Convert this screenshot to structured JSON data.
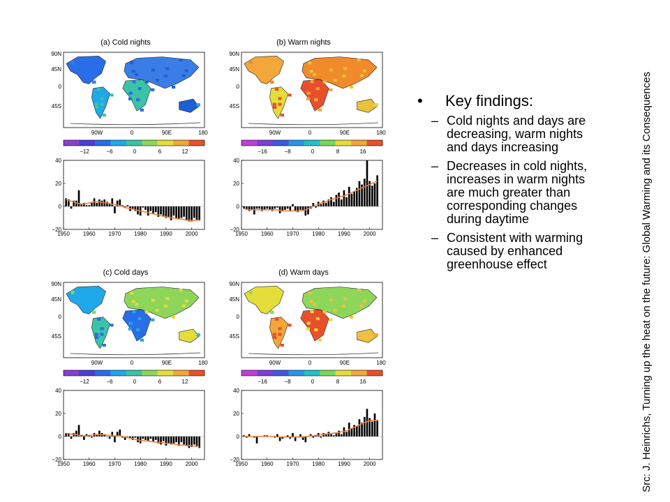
{
  "findings": {
    "heading": "Key findings:",
    "items": [
      "Cold nights and days are decreasing, warm nights and days increasing",
      "Decreases in cold nights, increases in warm nights are much greater than corresponding changes during daytime",
      "Consistent with warming caused by enhanced greenhouse effect"
    ]
  },
  "source": "Src: J. Heinrichs, Turning up the heat on the future: Global Warming and its Consequences",
  "colors": {
    "bars": "#000000",
    "trend": "#f07f3c",
    "grid": "#9a9a9a"
  },
  "chart_data": [
    {
      "type": "bar",
      "title": "(a) Cold nights",
      "map": {
        "lat_labels": [
          "90N",
          "45N",
          "0",
          "45S"
        ],
        "lon_labels": [
          "90W",
          "0",
          "90E",
          "180"
        ],
        "dominant": "cold-blue"
      },
      "colorbar": {
        "ticks": [
          "-12",
          "-6",
          "0",
          "6",
          "12"
        ],
        "colors": [
          "#8a3fd0",
          "#4a3ed6",
          "#2a6de8",
          "#1fa8ea",
          "#3bc3a6",
          "#8ed65a",
          "#e4dd3a",
          "#f3a63a",
          "#ea4f2c"
        ]
      },
      "x_ticks": [
        "1950",
        "1960",
        "1970",
        "1980",
        "1990",
        "2000"
      ],
      "y_ticks": [
        "40",
        "20",
        "0",
        "-20"
      ],
      "ylim": [
        -20,
        40
      ],
      "xlim": [
        1950,
        2005
      ],
      "x": [
        1951,
        1952,
        1953,
        1954,
        1955,
        1956,
        1957,
        1958,
        1959,
        1960,
        1961,
        1962,
        1963,
        1964,
        1965,
        1966,
        1967,
        1968,
        1969,
        1970,
        1971,
        1972,
        1973,
        1974,
        1975,
        1976,
        1977,
        1978,
        1979,
        1980,
        1981,
        1982,
        1983,
        1984,
        1985,
        1986,
        1987,
        1988,
        1989,
        1990,
        1991,
        1992,
        1993,
        1994,
        1995,
        1996,
        1997,
        1998,
        1999,
        2000,
        2001,
        2002,
        2003
      ],
      "values": [
        7,
        6,
        -2,
        5,
        5,
        14,
        2,
        3,
        1,
        1,
        3,
        7,
        3,
        6,
        5,
        6,
        4,
        2,
        7,
        -6,
        5,
        6,
        1,
        -1,
        1,
        -4,
        -2,
        -4,
        -7,
        -8,
        -1,
        -3,
        -8,
        -4,
        -6,
        -5,
        -9,
        -7,
        -9,
        -10,
        -9,
        -12,
        -8,
        -11,
        -11,
        -10,
        -9,
        -12,
        -13,
        -13,
        -10,
        -12,
        -12
      ],
      "trend": [
        6,
        5,
        4.5,
        4,
        3,
        2.5,
        2,
        2,
        2.5,
        3,
        3.5,
        4,
        4,
        4,
        3.5,
        3,
        3,
        2.5,
        2,
        1.5,
        1,
        0.5,
        0,
        -1,
        -1.5,
        -2,
        -2.5,
        -3,
        -3.5,
        -4,
        -4.5,
        -5,
        -5.5,
        -6,
        -6.5,
        -7,
        -7.5,
        -8,
        -8.5,
        -9,
        -9.5,
        -10,
        -10,
        -10.5,
        -11,
        -11,
        -11.5,
        -12,
        -12,
        -12,
        -12,
        -12,
        -12
      ]
    },
    {
      "type": "bar",
      "title": "(b) Warm nights",
      "map": {
        "lat_labels": [
          "90N",
          "45N",
          "0",
          "45S"
        ],
        "lon_labels": [
          "90W",
          "0",
          "90E",
          "180"
        ],
        "dominant": "warm-orange"
      },
      "colorbar": {
        "ticks": [
          "-16",
          "-8",
          "0",
          "8",
          "16"
        ],
        "colors": [
          "#c23ed8",
          "#7b3fd6",
          "#3c59e0",
          "#2596e8",
          "#24c0c4",
          "#7cd65a",
          "#e4dd3a",
          "#f3a63a",
          "#ea4f2c"
        ]
      },
      "x_ticks": [
        "1950",
        "1960",
        "1970",
        "1980",
        "1990",
        "2000"
      ],
      "y_ticks": [
        "40",
        "20",
        "0",
        "-20"
      ],
      "ylim": [
        -20,
        40
      ],
      "xlim": [
        1950,
        2005
      ],
      "x": [
        1951,
        1952,
        1953,
        1954,
        1955,
        1956,
        1957,
        1958,
        1959,
        1960,
        1961,
        1962,
        1963,
        1964,
        1965,
        1966,
        1967,
        1968,
        1969,
        1970,
        1971,
        1972,
        1973,
        1974,
        1975,
        1976,
        1977,
        1978,
        1979,
        1980,
        1981,
        1982,
        1983,
        1984,
        1985,
        1986,
        1987,
        1988,
        1989,
        1990,
        1991,
        1992,
        1993,
        1994,
        1995,
        1996,
        1997,
        1998,
        1999,
        2000,
        2001,
        2002,
        2003
      ],
      "values": [
        -2,
        -3,
        -4,
        -3,
        -7,
        -2,
        -2,
        -4,
        -3,
        -2,
        -3,
        -4,
        -2,
        -1,
        -6,
        -4,
        -3,
        -2,
        -4,
        2,
        -4,
        -5,
        -3,
        -4,
        -8,
        -7,
        -2,
        3,
        -1,
        4,
        2,
        5,
        3,
        6,
        8,
        4,
        10,
        12,
        6,
        14,
        8,
        17,
        11,
        13,
        16,
        22,
        19,
        24,
        40,
        22,
        18,
        20,
        27
      ],
      "trend": [
        -2,
        -2.5,
        -3,
        -3,
        -3,
        -3,
        -3,
        -3,
        -3,
        -3,
        -3,
        -3,
        -3,
        -3,
        -3.5,
        -4,
        -4,
        -4,
        -4,
        -4,
        -4,
        -4,
        -4,
        -3.5,
        -3,
        -2,
        -1,
        0,
        1,
        2,
        3,
        3.5,
        4,
        5,
        6,
        6.5,
        7,
        8,
        8.5,
        9,
        10,
        11,
        12,
        13,
        14,
        15,
        16,
        17,
        18,
        19,
        20,
        21,
        22
      ]
    },
    {
      "type": "bar",
      "title": "(c) Cold days",
      "map": {
        "lat_labels": [
          "90N",
          "45N",
          "0",
          "45S"
        ],
        "lon_labels": [
          "90W",
          "0",
          "90E",
          "180"
        ],
        "dominant": "cool-teal"
      },
      "colorbar": {
        "ticks": [
          "-12",
          "-6",
          "0",
          "6",
          "12"
        ],
        "colors": [
          "#8a3fd0",
          "#4a3ed6",
          "#2a6de8",
          "#1fa8ea",
          "#3bc3a6",
          "#8ed65a",
          "#e4dd3a",
          "#f3a63a",
          "#ea4f2c"
        ]
      },
      "x_ticks": [
        "1950",
        "1960",
        "1970",
        "1980",
        "1990",
        "2000"
      ],
      "y_ticks": [
        "40",
        "20",
        "0",
        "-20"
      ],
      "ylim": [
        -20,
        40
      ],
      "xlim": [
        1950,
        2005
      ],
      "x": [
        1951,
        1952,
        1953,
        1954,
        1955,
        1956,
        1957,
        1958,
        1959,
        1960,
        1961,
        1962,
        1963,
        1964,
        1965,
        1966,
        1967,
        1968,
        1969,
        1970,
        1971,
        1972,
        1973,
        1974,
        1975,
        1976,
        1977,
        1978,
        1979,
        1980,
        1981,
        1982,
        1983,
        1984,
        1985,
        1986,
        1987,
        1988,
        1989,
        1990,
        1991,
        1992,
        1993,
        1994,
        1995,
        1996,
        1997,
        1998,
        1999,
        2000,
        2001,
        2002,
        2003
      ],
      "values": [
        3,
        3,
        -2,
        3,
        5,
        10,
        1,
        -3,
        2,
        1,
        -1,
        3,
        2,
        5,
        3,
        2,
        0,
        -2,
        4,
        -5,
        4,
        6,
        -1,
        -3,
        0,
        -2,
        -3,
        -1,
        -5,
        -6,
        -2,
        -3,
        -4,
        -2,
        -5,
        -3,
        -6,
        -7,
        -4,
        -8,
        -6,
        -7,
        -6,
        -5,
        -8,
        -5,
        -7,
        -8,
        -10,
        -9,
        -7,
        -9,
        -10
      ],
      "trend": [
        2.5,
        2.5,
        2,
        2,
        1.5,
        1,
        1,
        0.5,
        0.5,
        1,
        1,
        1.5,
        1.5,
        1.5,
        1.5,
        1.5,
        1,
        1,
        1,
        0.5,
        0.5,
        0.5,
        0,
        -0.5,
        -1,
        -1.5,
        -2,
        -2.5,
        -3,
        -3.5,
        -3.5,
        -4,
        -4,
        -4.5,
        -4.5,
        -5,
        -5,
        -5.5,
        -5.5,
        -6,
        -6,
        -6.5,
        -6.5,
        -7,
        -7,
        -7.5,
        -7.5,
        -8,
        -8,
        -8,
        -8.5,
        -8.5,
        -9
      ]
    },
    {
      "type": "bar",
      "title": "(d) Warm days",
      "map": {
        "lat_labels": [
          "90N",
          "45N",
          "0",
          "45S"
        ],
        "lon_labels": [
          "90W",
          "0",
          "90E",
          "180"
        ],
        "dominant": "warm-yellow"
      },
      "colorbar": {
        "ticks": [
          "-16",
          "-8",
          "0",
          "8",
          "16"
        ],
        "colors": [
          "#c23ed8",
          "#7b3fd6",
          "#3c59e0",
          "#2596e8",
          "#24c0c4",
          "#7cd65a",
          "#e4dd3a",
          "#f3a63a",
          "#ea4f2c"
        ]
      },
      "x_ticks": [
        "1950",
        "1960",
        "1970",
        "1980",
        "1990",
        "2000"
      ],
      "y_ticks": [
        "40",
        "20",
        "0",
        "-20"
      ],
      "ylim": [
        -20,
        40
      ],
      "xlim": [
        1950,
        2005
      ],
      "x": [
        1951,
        1952,
        1953,
        1954,
        1955,
        1956,
        1957,
        1958,
        1959,
        1960,
        1961,
        1962,
        1963,
        1964,
        1965,
        1966,
        1967,
        1968,
        1969,
        1970,
        1971,
        1972,
        1973,
        1974,
        1975,
        1976,
        1977,
        1978,
        1979,
        1980,
        1981,
        1982,
        1983,
        1984,
        1985,
        1986,
        1987,
        1988,
        1989,
        1990,
        1991,
        1992,
        1993,
        1994,
        1995,
        1996,
        1997,
        1998,
        1999,
        2000,
        2001,
        2002,
        2003
      ],
      "values": [
        1,
        -1,
        2,
        0,
        -1,
        -6,
        0,
        0,
        1,
        1,
        0,
        0,
        -1,
        2,
        -4,
        -2,
        0,
        1,
        -2,
        3,
        -4,
        0,
        2,
        -3,
        -5,
        0,
        2,
        -1,
        1,
        3,
        -1,
        3,
        2,
        4,
        2,
        1,
        3,
        5,
        2,
        8,
        4,
        12,
        7,
        10,
        9,
        15,
        12,
        17,
        24,
        16,
        13,
        20,
        14
      ],
      "trend": [
        0,
        0,
        0,
        0,
        0,
        0,
        0,
        0,
        0,
        0,
        0,
        0,
        0,
        -0.5,
        -0.5,
        -0.5,
        -0.5,
        -0.5,
        -0.5,
        -0.5,
        -0.5,
        -0.5,
        -0.5,
        -0.5,
        0,
        0,
        0.5,
        0.5,
        1,
        1,
        1.5,
        2,
        2,
        2.5,
        2.5,
        3,
        3,
        3.5,
        4,
        4.5,
        5,
        6,
        7,
        8,
        9,
        10,
        11,
        12,
        13,
        13.5,
        14,
        14,
        14
      ]
    }
  ]
}
